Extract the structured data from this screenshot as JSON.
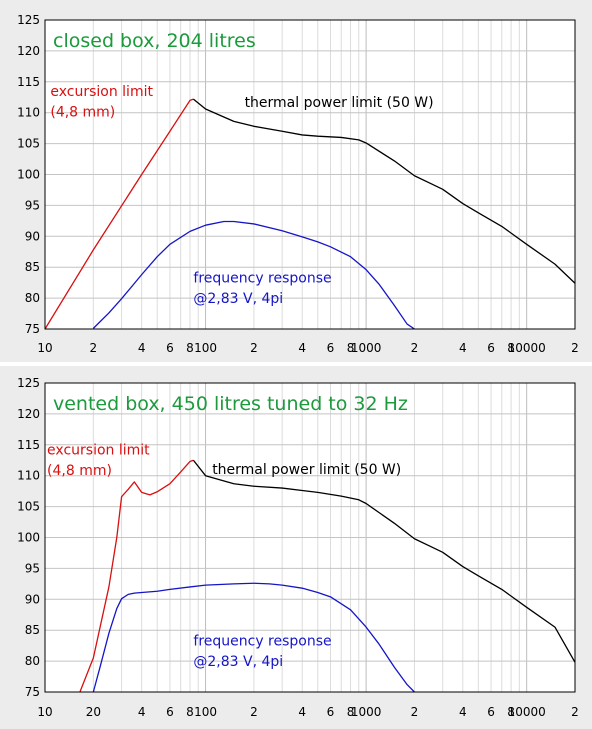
{
  "chart_data": [
    {
      "type": "line",
      "title": "closed box, 204 litres",
      "x_scale": "log",
      "xlim": [
        10,
        20000
      ],
      "ylim": [
        75,
        125
      ],
      "grid": true,
      "x_tick_labels": [
        {
          "v": 10,
          "t": "10"
        },
        {
          "v": 20,
          "t": "2"
        },
        {
          "v": 40,
          "t": "4"
        },
        {
          "v": 60,
          "t": "6"
        },
        {
          "v": 80,
          "t": "8"
        },
        {
          "v": 100,
          "t": "100"
        },
        {
          "v": 200,
          "t": "2"
        },
        {
          "v": 400,
          "t": "4"
        },
        {
          "v": 600,
          "t": "6"
        },
        {
          "v": 800,
          "t": "8"
        },
        {
          "v": 1000,
          "t": "1000"
        },
        {
          "v": 2000,
          "t": "2"
        },
        {
          "v": 4000,
          "t": "4"
        },
        {
          "v": 6000,
          "t": "6"
        },
        {
          "v": 8000,
          "t": "8"
        },
        {
          "v": 10000,
          "t": "10000"
        },
        {
          "v": 20000,
          "t": "2"
        }
      ],
      "y_ticks": [
        75,
        80,
        85,
        90,
        95,
        100,
        105,
        110,
        115,
        120,
        125
      ],
      "annotations": [
        {
          "key": "excursion",
          "lines": [
            "excursion limit",
            "(4,8 mm)"
          ],
          "color": "#d81010",
          "x": 10.8,
          "y": 112.7,
          "dy": 20.5
        },
        {
          "key": "thermal",
          "lines": [
            "thermal power limit  (50 W)"
          ],
          "color": "#000000",
          "x": 175,
          "y": 110.9,
          "dy": 0
        },
        {
          "key": "freq",
          "lines": [
            "frequency response",
            "@2,83 V, 4pi"
          ],
          "color": "#1515c8",
          "x": 84,
          "y": 82.5,
          "dy": 20.5
        }
      ],
      "series": [
        {
          "key": "excursion",
          "color": "#d81010",
          "x": [
            10,
            20,
            40,
            60,
            80,
            84
          ],
          "y": [
            75,
            87.8,
            100.0,
            107.0,
            112.0,
            112.2
          ]
        },
        {
          "key": "thermal",
          "color": "#000000",
          "x": [
            84,
            100,
            150,
            200,
            300,
            400,
            500,
            700,
            900,
            1000,
            1500,
            2000,
            2500,
            3000,
            4000,
            5000,
            7000,
            10000,
            15000,
            20000
          ],
          "y": [
            112.2,
            110.6,
            108.6,
            107.8,
            107.0,
            106.4,
            106.2,
            106.0,
            105.6,
            105.1,
            102.2,
            99.8,
            98.6,
            97.6,
            95.3,
            93.8,
            91.6,
            88.7,
            85.5,
            82.4
          ]
        },
        {
          "key": "freq",
          "color": "#1515c8",
          "x": [
            20,
            25,
            30,
            40,
            50,
            60,
            80,
            100,
            130,
            150,
            200,
            300,
            400,
            500,
            600,
            800,
            1000,
            1200,
            1500,
            1800,
            2000
          ],
          "y": [
            75.1,
            77.6,
            79.9,
            83.8,
            86.7,
            88.7,
            90.8,
            91.8,
            92.4,
            92.4,
            92.0,
            90.9,
            89.9,
            89.1,
            88.3,
            86.7,
            84.6,
            82.3,
            78.8,
            75.8,
            75.0
          ]
        }
      ]
    },
    {
      "type": "line",
      "title": "vented box, 450 litres tuned to 32 Hz",
      "x_scale": "log",
      "xlim": [
        10,
        20000
      ],
      "ylim": [
        75,
        125
      ],
      "grid": true,
      "x_tick_labels": [
        {
          "v": 10,
          "t": "10"
        },
        {
          "v": 20,
          "t": "20"
        },
        {
          "v": 40,
          "t": "4"
        },
        {
          "v": 60,
          "t": "6"
        },
        {
          "v": 80,
          "t": "8"
        },
        {
          "v": 100,
          "t": "100"
        },
        {
          "v": 200,
          "t": "2"
        },
        {
          "v": 400,
          "t": "4"
        },
        {
          "v": 600,
          "t": "6"
        },
        {
          "v": 800,
          "t": "8"
        },
        {
          "v": 1000,
          "t": "1000"
        },
        {
          "v": 2000,
          "t": "2"
        },
        {
          "v": 4000,
          "t": "4"
        },
        {
          "v": 6000,
          "t": "6"
        },
        {
          "v": 8000,
          "t": "8"
        },
        {
          "v": 10000,
          "t": "10000"
        },
        {
          "v": 20000,
          "t": "2"
        }
      ],
      "y_ticks": [
        75,
        80,
        85,
        90,
        95,
        100,
        105,
        110,
        115,
        120,
        125
      ],
      "annotations": [
        {
          "key": "excursion",
          "lines": [
            "excursion limit",
            "(4,8 mm)"
          ],
          "color": "#d81010",
          "x": 10.3,
          "y": 113.4,
          "dy": 20.5
        },
        {
          "key": "thermal",
          "lines": [
            "thermal power limit  (50 W)"
          ],
          "color": "#000000",
          "x": 110,
          "y": 110.3,
          "dy": 0
        },
        {
          "key": "freq",
          "lines": [
            "frequency response",
            "@2,83 V, 4pi"
          ],
          "color": "#1515c8",
          "x": 84,
          "y": 82.5,
          "dy": 20.5
        }
      ],
      "series": [
        {
          "key": "excursion",
          "color": "#d81010",
          "x": [
            16.5,
            20,
            25,
            28,
            30,
            33,
            36,
            40,
            45,
            50,
            60,
            70,
            80,
            84
          ],
          "y": [
            75,
            80.5,
            92,
            100,
            106.6,
            107.8,
            109.0,
            107.3,
            106.9,
            107.4,
            108.7,
            110.6,
            112.3,
            112.5
          ]
        },
        {
          "key": "thermal",
          "color": "#000000",
          "x": [
            84,
            100,
            150,
            200,
            300,
            400,
            500,
            700,
            900,
            1000,
            1500,
            2000,
            2500,
            3000,
            4000,
            5000,
            7000,
            10000,
            15000,
            20000
          ],
          "y": [
            112.5,
            110.0,
            108.7,
            108.3,
            108.0,
            107.6,
            107.3,
            106.7,
            106.1,
            105.5,
            102.3,
            99.8,
            98.6,
            97.6,
            95.3,
            93.8,
            91.6,
            88.7,
            85.5,
            79.8
          ]
        },
        {
          "key": "freq",
          "color": "#1515c8",
          "x": [
            20,
            22,
            25,
            28,
            30,
            33,
            36,
            40,
            50,
            60,
            80,
            100,
            150,
            200,
            250,
            300,
            400,
            500,
            600,
            800,
            1000,
            1200,
            1500,
            1800,
            2000
          ],
          "y": [
            75,
            79,
            84.5,
            88.5,
            90.1,
            90.8,
            91.0,
            91.1,
            91.3,
            91.6,
            92.0,
            92.3,
            92.5,
            92.6,
            92.5,
            92.3,
            91.8,
            91.1,
            90.4,
            88.3,
            85.5,
            82.8,
            79.0,
            76.2,
            75.0
          ]
        }
      ]
    }
  ]
}
